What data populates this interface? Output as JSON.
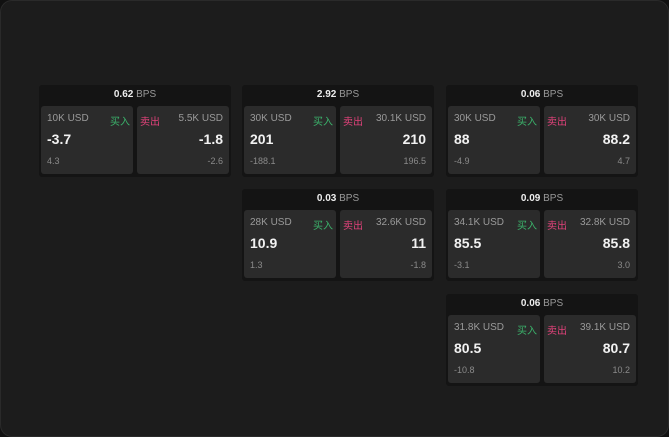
{
  "unit": "BPS",
  "buy_label": "买入",
  "sell_label": "卖出",
  "colors": {
    "buy": "#3bb36b",
    "sell": "#e0427a"
  },
  "cards": [
    {
      "spread": "0.62",
      "bid": {
        "size": "10K USD",
        "price": "-3.7",
        "change": "4.3"
      },
      "ask": {
        "size": "5.5K USD",
        "price": "-1.8",
        "change": "-2.6"
      }
    },
    {
      "spread": "2.92",
      "bid": {
        "size": "30K USD",
        "price": "201",
        "change": "-188.1"
      },
      "ask": {
        "size": "30.1K USD",
        "price": "210",
        "change": "196.5"
      }
    },
    {
      "spread": "0.06",
      "bid": {
        "size": "30K USD",
        "price": "88",
        "change": "-4.9"
      },
      "ask": {
        "size": "30K USD",
        "price": "88.2",
        "change": "4.7"
      }
    },
    {
      "spread": "0.03",
      "bid": {
        "size": "28K USD",
        "price": "10.9",
        "change": "1.3"
      },
      "ask": {
        "size": "32.6K USD",
        "price": "11",
        "change": "-1.8"
      }
    },
    {
      "spread": "0.09",
      "bid": {
        "size": "34.1K USD",
        "price": "85.5",
        "change": "-3.1"
      },
      "ask": {
        "size": "32.8K USD",
        "price": "85.8",
        "change": "3.0"
      }
    },
    {
      "spread": "0.06",
      "bid": {
        "size": "31.8K USD",
        "price": "80.5",
        "change": "-10.8"
      },
      "ask": {
        "size": "39.1K USD",
        "price": "80.7",
        "change": "10.2"
      }
    }
  ]
}
